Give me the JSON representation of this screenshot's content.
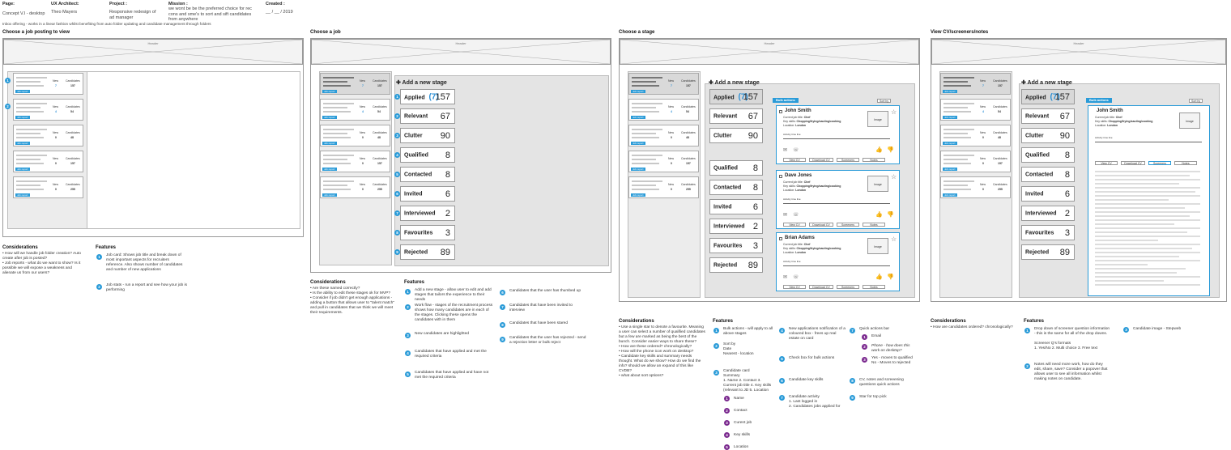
{
  "meta": {
    "page_label": "Page:",
    "page_value": "Concept V.I - desktop",
    "ux_label": "UX Architect:",
    "ux_value": "Theo Mayers",
    "project_label": "Project :",
    "project_value": "Responsive redesign of ad manager",
    "mission_label": "Mission :",
    "mission_value": "we wont be be the preferred choice for rec cons and sme's to sort and sift candidates from anywhere",
    "created_label": "Created :",
    "created_value": "__ / __ / 2019",
    "inbox_note": "Inbox offering - works in a linear fashion whilst benefiting from auto folder updating and candidate management through folders"
  },
  "sections": [
    {
      "title": "Choose a job posting to view"
    },
    {
      "title": "Choose a job"
    },
    {
      "title": "Choose a stage"
    },
    {
      "title": "View CV/screeners/notes"
    }
  ],
  "header_label": "Header",
  "job_cards": [
    {
      "new": "7",
      "candidates": "157",
      "new_label": "New",
      "cand_label": "Candidates",
      "report": "Job report"
    },
    {
      "new": "4",
      "candidates": "54",
      "new_label": "New",
      "cand_label": "Candidates",
      "report": "Job report"
    },
    {
      "new": "0",
      "candidates": "48",
      "new_label": "New",
      "cand_label": "Candidates",
      "report": "Job report"
    },
    {
      "new": "0",
      "candidates": "157",
      "new_label": "New",
      "cand_label": "Candidates",
      "report": "Job report"
    },
    {
      "new": "0",
      "candidates": "255",
      "new_label": "New",
      "cand_label": "Candidates",
      "report": "Job report"
    }
  ],
  "add_stage": "✚ Add a new stage",
  "stages": [
    {
      "label": "Applied",
      "badge": "(7)",
      "value": "157"
    },
    {
      "label": "Relevant",
      "value": "67"
    },
    {
      "label": "Clutter",
      "value": "90"
    },
    {
      "label": "Qualified",
      "value": "8"
    },
    {
      "label": "Contacted",
      "value": "8"
    },
    {
      "label": "Invited",
      "value": "6"
    },
    {
      "label": "Interviewed",
      "value": "2"
    },
    {
      "label": "Favourites",
      "value": "3"
    },
    {
      "label": "Rejected",
      "value": "89"
    }
  ],
  "bulk_actions": "Bulk actions",
  "sort_by": "Sort by",
  "candidates": [
    {
      "name": "John Smith",
      "title_label": "Current job title:",
      "title": "Chef",
      "skills_label": "Key skills:",
      "skills": "Chopping/frying/sauting/cooking",
      "loc_label": "Location:",
      "loc": "London"
    },
    {
      "name": "Dave Jones",
      "title_label": "Current job title:",
      "title": "Chef",
      "skills_label": "Key skills:",
      "skills": "Chopping/frying/sauting/cooking",
      "loc_label": "Location:",
      "loc": "London"
    },
    {
      "name": "Brian Adams",
      "title_label": "Current job title:",
      "title": "Chef",
      "skills_label": "Key skills:",
      "skills": "Chopping/frying/sauting/cooking",
      "loc_label": "Location:",
      "loc": "London"
    }
  ],
  "card_buttons": [
    "View CV",
    "Download CV",
    "Screeners",
    "Notes"
  ],
  "image_label": "Image",
  "activity_label": "Activity time line",
  "col1": {
    "cons_title": "Considerations",
    "cons_text": "• How will we handle job folder creation? Auto create after job is posted?\n• Job reports - what do we want to show? Is it possible we will expose a weakness and alienate us from our users?",
    "feat_title": "Features",
    "features": [
      "Job card: Shows job title and break down of most important aspects for recruiters reference. Also shows number of candidates and number of new applications",
      "Job stats - run a report and see how your job is performing"
    ]
  },
  "col2": {
    "cons_title": "Considerations",
    "cons_text": "• Are these named correctly?\n• Is the ability to edit these stages ok for MVP?\n• Consider if job didn't get enough applications - adding a button that allows user to \"talent match\" and pull in candidates that we think we will meet their requirements.",
    "feat_title": "Features",
    "features_a": [
      "Add a new stage - allow user to edit and add stages that tailors the experience to their needs",
      "Work flow - stages of the recruitment process shows how many candidates are in each of the stages. Clicking these opens the candidates with in them",
      "New candidates are highlighted",
      "Candidates that have applied and met the required criteria",
      "Candidates that have applied and have not met the required criteria"
    ],
    "features_b": [
      "Candidates that the user has thumbed up",
      "Candidates that have been invited to interview",
      "Candidates that have been stared",
      "Candidates that the user has rejected - send a rejection letter or bulk reject"
    ]
  },
  "col3": {
    "cons_title": "Considerations",
    "cons_text": "• Use a single star to denote a favourite. Meaning a user can select a number of qualified candidates but a few are marked as being the best of the bunch. Consider easier ways to share these?\n• How are these ordered? chronologically?\n• How will the phone icon work on desktop?\n• Candidate key skills and summary needs thought. What do we show? How do we find the info? should we allow an expand of this like CVDB?\n• what about sort options?",
    "feat_title": "Features",
    "f1": "Bulk actions - will apply to all above stages",
    "f2": "Sort by\nDate\nNearest - location",
    "f3": "Candidate card\nSummary\n1. Name 2. Contact 3. Current job title 4. Key skills (relevant to JD 5. Location",
    "sub": [
      "Name",
      "Contact",
      "Curent job",
      "Key skills",
      "Location"
    ],
    "f4": "New applications notification of a coloured box - frees up real estate on card",
    "f5": "Check box for bulk actions",
    "f6": "Candidate key skills",
    "f7": "Candidate activity\n1. Last logged in\n2. Candidates jobs applied for",
    "f8": "Quick actions bar",
    "q": [
      "Email",
      "Phone - how does this work on desktop?",
      "Yes - moves to qualified\nNo - Moves to rejected"
    ],
    "f9": "CV, notes and screeening questions quick actions",
    "f10": "Star for top pick"
  },
  "col4": {
    "cons_title": "Considerations",
    "cons_text": "• How are candidates ordered? chronologically?",
    "feat_title": "Features",
    "f1": "Drop down of screener question information - this is the same for all of the drop downs.\n\nScreener Q's formats\n1. Yes/No 2. Multi choice 3. Free text",
    "f2": "Notes will need more work, how do they edit, share, save? Consider a popover that allows user to see all information whilst making notes on candidate.",
    "f3": "Candidate image - Stepweb"
  }
}
